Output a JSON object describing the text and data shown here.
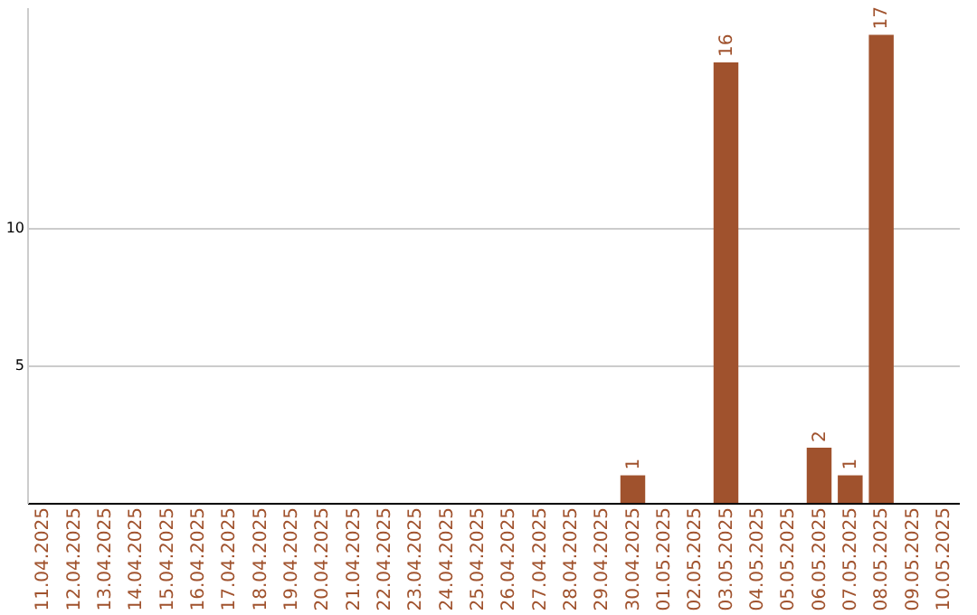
{
  "chart_data": {
    "type": "bar",
    "categories": [
      "11.04.2025",
      "12.04.2025",
      "13.04.2025",
      "14.04.2025",
      "15.04.2025",
      "16.04.2025",
      "17.04.2025",
      "18.04.2025",
      "19.04.2025",
      "20.04.2025",
      "21.04.2025",
      "22.04.2025",
      "23.04.2025",
      "24.04.2025",
      "25.04.2025",
      "26.04.2025",
      "27.04.2025",
      "28.04.2025",
      "29.04.2025",
      "30.04.2025",
      "01.05.2025",
      "02.05.2025",
      "03.05.2025",
      "04.05.2025",
      "05.05.2025",
      "06.05.2025",
      "07.05.2025",
      "08.05.2025",
      "09.05.2025",
      "10.05.2025"
    ],
    "values": [
      0,
      0,
      0,
      0,
      0,
      0,
      0,
      0,
      0,
      0,
      0,
      0,
      0,
      0,
      0,
      0,
      0,
      0,
      0,
      1,
      0,
      0,
      16,
      0,
      0,
      2,
      1,
      17,
      0,
      0
    ],
    "value_labels": [
      null,
      null,
      null,
      null,
      null,
      null,
      null,
      null,
      null,
      null,
      null,
      null,
      null,
      null,
      null,
      null,
      null,
      null,
      null,
      "1",
      null,
      null,
      "16",
      null,
      null,
      "2",
      "1",
      "17",
      null,
      null
    ],
    "color": "#a0522d",
    "ylim": [
      0,
      18
    ],
    "yticks": [
      5,
      10
    ],
    "grid": "y"
  }
}
